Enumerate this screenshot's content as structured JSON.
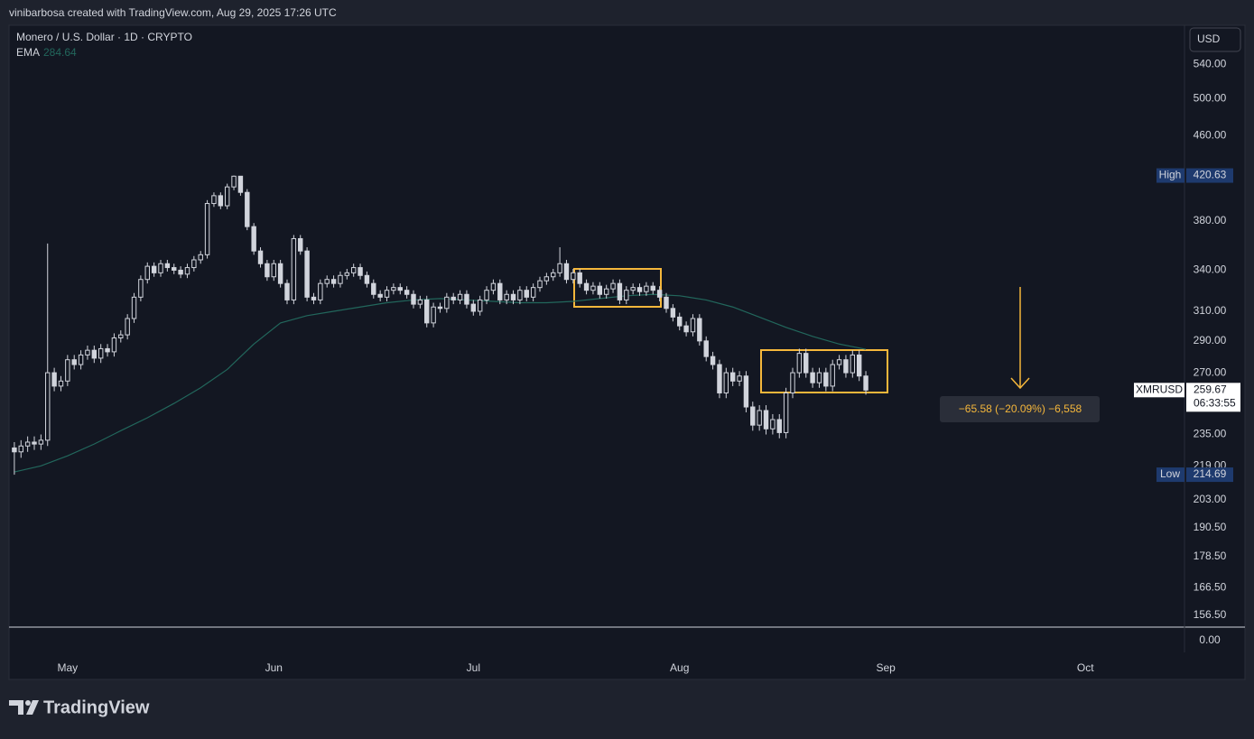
{
  "header": "vinibarbosa created with TradingView.com, Aug 29, 2025 17:26 UTC",
  "chart_data": {
    "type": "candlestick",
    "title": "Monero / U.S. Dollar · 1D · CRYPTO",
    "color": "#d1d4dc",
    "x": [
      0,
      1,
      2,
      3,
      4,
      5,
      6,
      7,
      8,
      9,
      10,
      11,
      12,
      13,
      14,
      15,
      16,
      17,
      18,
      19,
      20,
      21,
      22,
      23,
      24,
      25,
      26,
      27,
      28,
      29,
      30,
      31,
      32,
      33,
      34,
      35,
      36,
      37,
      38,
      39,
      40,
      41,
      42,
      43,
      44,
      45,
      46,
      47,
      48,
      49,
      50,
      51,
      52,
      53,
      54,
      55,
      56,
      57,
      58,
      59,
      60,
      61,
      62,
      63,
      64,
      65,
      66,
      67,
      68,
      69,
      70,
      71,
      72,
      73,
      74,
      75,
      76,
      77,
      78,
      79,
      80,
      81,
      82,
      83,
      84,
      85,
      86,
      87,
      88,
      89,
      90,
      91,
      92,
      93,
      94,
      95,
      96,
      97,
      98,
      99,
      100,
      101,
      102,
      103,
      104,
      105,
      106,
      107,
      108,
      109,
      110,
      111,
      112,
      113,
      114,
      115,
      116,
      117,
      118,
      119,
      120,
      121,
      122,
      123,
      124,
      125,
      126,
      127,
      128
    ],
    "open": [
      228,
      226,
      229,
      231,
      230,
      232,
      270,
      262,
      265,
      278,
      275,
      281,
      284,
      279,
      285,
      283,
      292,
      294,
      305,
      320,
      333,
      343,
      338,
      345,
      342,
      340,
      337,
      342,
      348,
      352,
      395,
      402,
      393,
      410,
      420,
      405,
      375,
      355,
      345,
      335,
      345,
      330,
      318,
      365,
      355,
      320,
      318,
      330,
      333,
      330,
      336,
      338,
      342,
      336,
      330,
      322,
      320,
      325,
      327,
      325,
      322,
      315,
      318,
      302,
      313,
      312,
      320,
      318,
      322,
      315,
      310,
      318,
      325,
      330,
      318,
      322,
      318,
      325,
      320,
      327,
      332,
      335,
      338,
      345,
      333,
      338,
      330,
      325,
      328,
      322,
      326,
      330,
      318,
      325,
      327,
      324,
      328,
      325,
      320,
      312,
      306,
      300,
      296,
      305,
      290,
      280,
      275,
      258,
      270,
      265,
      268,
      250,
      240,
      248,
      238,
      243,
      236,
      258,
      270,
      282,
      270,
      264,
      270,
      262,
      275,
      278,
      270,
      281,
      268
    ],
    "high": [
      231,
      232,
      234,
      234,
      235,
      361,
      273,
      268,
      281,
      281,
      284,
      287,
      287,
      288,
      288,
      295,
      297,
      308,
      323,
      336,
      346,
      346,
      348,
      348,
      345,
      343,
      345,
      351,
      355,
      398,
      405,
      405,
      413,
      420.63,
      420,
      408,
      378,
      358,
      348,
      348,
      348,
      333,
      368,
      368,
      358,
      323,
      333,
      336,
      336,
      339,
      341,
      345,
      345,
      339,
      333,
      325,
      328,
      330,
      330,
      328,
      325,
      321,
      321,
      316,
      316,
      323,
      323,
      325,
      325,
      318,
      321,
      328,
      333,
      333,
      325,
      325,
      328,
      328,
      330,
      335,
      338,
      341,
      358,
      348,
      341,
      341,
      333,
      331,
      331,
      329,
      333,
      333,
      328,
      330,
      330,
      331,
      331,
      328,
      323,
      315,
      309,
      303,
      308,
      308,
      293,
      283,
      278,
      273,
      273,
      271,
      271,
      253,
      251,
      251,
      246,
      246,
      261,
      273,
      285,
      285,
      273,
      273,
      273,
      278,
      281,
      281,
      284,
      284,
      271
    ],
    "low": [
      214.69,
      223,
      226,
      227,
      227,
      229,
      259,
      259,
      262,
      272,
      272,
      278,
      276,
      276,
      280,
      280,
      289,
      291,
      302,
      317,
      330,
      335,
      335,
      339,
      337,
      334,
      334,
      339,
      345,
      349,
      392,
      390,
      390,
      407,
      402,
      372,
      352,
      342,
      332,
      332,
      327,
      315,
      315,
      352,
      317,
      315,
      315,
      327,
      327,
      327,
      333,
      335,
      333,
      327,
      319,
      317,
      317,
      322,
      322,
      319,
      312,
      312,
      299,
      299,
      309,
      309,
      315,
      315,
      312,
      307,
      307,
      315,
      322,
      315,
      315,
      315,
      315,
      317,
      317,
      324,
      329,
      332,
      335,
      330,
      330,
      327,
      322,
      322,
      319,
      319,
      323,
      315,
      315,
      322,
      321,
      321,
      322,
      317,
      309,
      303,
      297,
      293,
      293,
      287,
      277,
      272,
      255,
      255,
      262,
      262,
      247,
      237,
      237,
      235,
      235,
      233,
      233,
      255,
      267,
      267,
      261,
      261,
      259,
      259,
      272,
      267,
      267,
      265,
      257
    ],
    "close": [
      226,
      229,
      231,
      230,
      232,
      270,
      262,
      265,
      278,
      275,
      281,
      284,
      279,
      285,
      283,
      292,
      294,
      305,
      320,
      333,
      343,
      338,
      345,
      342,
      340,
      337,
      342,
      348,
      352,
      395,
      402,
      393,
      410,
      420,
      405,
      375,
      355,
      345,
      335,
      345,
      330,
      318,
      365,
      355,
      320,
      318,
      330,
      333,
      330,
      336,
      338,
      342,
      336,
      330,
      322,
      320,
      325,
      327,
      325,
      322,
      315,
      318,
      302,
      313,
      312,
      320,
      318,
      322,
      315,
      310,
      318,
      325,
      330,
      318,
      322,
      318,
      325,
      320,
      327,
      332,
      335,
      338,
      345,
      333,
      338,
      330,
      325,
      328,
      322,
      326,
      330,
      318,
      325,
      327,
      324,
      328,
      325,
      320,
      312,
      306,
      300,
      296,
      305,
      290,
      280,
      275,
      258,
      270,
      265,
      268,
      250,
      240,
      248,
      238,
      243,
      236,
      258,
      270,
      282,
      270,
      264,
      270,
      262,
      275,
      278,
      270,
      281,
      268,
      259.67
    ],
    "xlim": [
      -0.8,
      175.9
    ],
    "xticks": [
      {
        "value": 8,
        "label": "May"
      },
      {
        "value": 39,
        "label": "Jun"
      },
      {
        "value": 69,
        "label": "Jul"
      },
      {
        "value": 100,
        "label": "Aug"
      },
      {
        "value": 131,
        "label": "Sep"
      },
      {
        "value": 161,
        "label": "Oct"
      }
    ],
    "ylim": [
      152.4,
      589.7
    ],
    "log_scale": true,
    "yticks": [
      {
        "value": 540,
        "label": "540.00"
      },
      {
        "value": 500,
        "label": "500.00"
      },
      {
        "value": 460,
        "label": "460.00"
      },
      {
        "value": 380,
        "label": "380.00"
      },
      {
        "value": 340,
        "label": "340.00"
      },
      {
        "value": 310,
        "label": "310.00"
      },
      {
        "value": 290,
        "label": "290.00"
      },
      {
        "value": 270,
        "label": "270.00"
      },
      {
        "value": 235,
        "label": "235.00"
      },
      {
        "value": 219,
        "label": "219.00"
      },
      {
        "value": 203,
        "label": "203.00"
      },
      {
        "value": 190.5,
        "label": "190.50"
      },
      {
        "value": 178.5,
        "label": "178.50"
      },
      {
        "value": 166.5,
        "label": "166.50"
      },
      {
        "value": 156.5,
        "label": "156.50"
      }
    ],
    "currency": "USD",
    "ema": {
      "name": "EMA",
      "color": "#22675c",
      "x": [
        0,
        4,
        8,
        12,
        16,
        20,
        24,
        28,
        32,
        36,
        40,
        44,
        48,
        52,
        56,
        60,
        64,
        68,
        72,
        76,
        80,
        84,
        88,
        92,
        96,
        100,
        104,
        108,
        112,
        116,
        120,
        124,
        128
      ],
      "values": [
        216,
        219,
        224,
        230,
        237,
        244,
        252,
        261,
        272,
        288,
        302,
        307,
        310,
        313,
        316,
        318,
        319,
        318,
        317,
        316,
        316,
        317,
        319,
        321,
        322,
        321,
        318,
        313,
        306,
        299,
        293,
        288,
        284.64
      ]
    },
    "high_label": "High",
    "low_label": "Low",
    "symbol": "XMRUSD",
    "countdown": "06:33:55",
    "measure_label": "−65.58 (−20.09%) −6,558",
    "lower_pane": {
      "yticks": [
        {
          "value": 0,
          "label": "0.00"
        }
      ]
    }
  },
  "footer": "TradingView"
}
